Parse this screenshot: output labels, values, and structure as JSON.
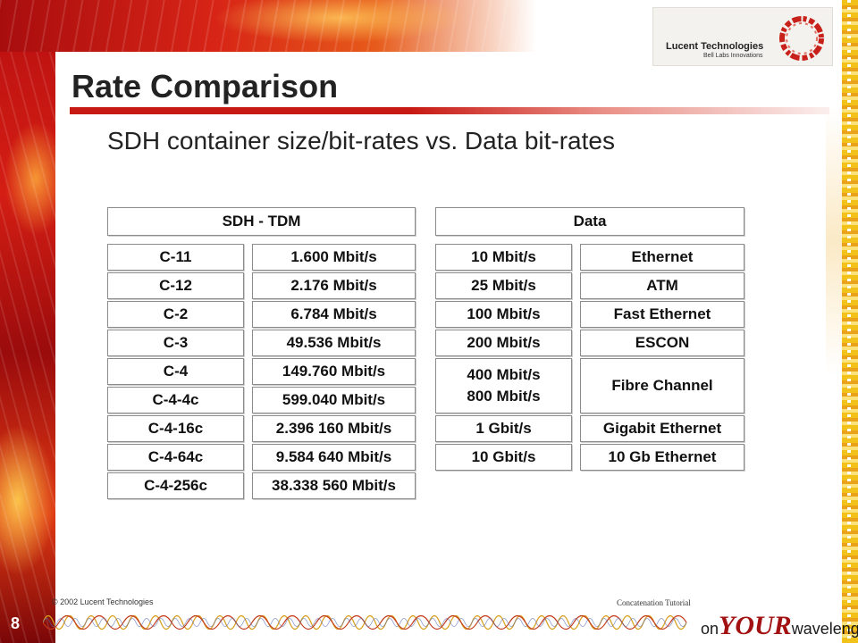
{
  "header": {
    "title": "Rate Comparison",
    "subtitle": "SDH container size/bit-rates vs. Data bit-rates"
  },
  "logo": {
    "name": "Lucent Technologies",
    "tagline": "Bell Labs Innovations"
  },
  "table": {
    "sdh_header": "SDH - TDM",
    "data_header": "Data",
    "sdh_rows": [
      {
        "container": "C-11",
        "rate": "1.600 Mbit/s"
      },
      {
        "container": "C-12",
        "rate": "2.176 Mbit/s"
      },
      {
        "container": "C-2",
        "rate": "6.784 Mbit/s"
      },
      {
        "container": "C-3",
        "rate": "49.536 Mbit/s"
      },
      {
        "container": "C-4",
        "rate": "149.760 Mbit/s"
      },
      {
        "container": "C-4-4c",
        "rate": "599.040 Mbit/s"
      },
      {
        "container": "C-4-16c",
        "rate": "2.396 160 Mbit/s"
      },
      {
        "container": "C-4-64c",
        "rate": "9.584 640 Mbit/s"
      },
      {
        "container": "C-4-256c",
        "rate": "38.338 560 Mbit/s"
      }
    ],
    "data_rows": [
      {
        "rate": "10 Mbit/s",
        "tech": "Ethernet"
      },
      {
        "rate": "25 Mbit/s",
        "tech": "ATM"
      },
      {
        "rate": "100 Mbit/s",
        "tech": "Fast Ethernet"
      },
      {
        "rate": "200 Mbit/s",
        "tech": "ESCON"
      },
      {
        "rate_line1": "400 Mbit/s",
        "rate_line2": "800 Mbit/s",
        "tech": "Fibre Channel"
      },
      {
        "rate": "1 Gbit/s",
        "tech": "Gigabit Ethernet"
      },
      {
        "rate": "10 Gbit/s",
        "tech": "10 Gb Ethernet"
      }
    ]
  },
  "footer": {
    "copyright": "© 2002 Lucent Technologies",
    "doc_name": "Concatenation Tutorial",
    "page_number": "8",
    "brand_on": "on",
    "brand_your": "YOUR",
    "brand_wavelength": "wavelength"
  },
  "colors": {
    "accent_red": "#c81a14",
    "brand_red": "#a31212",
    "strip_yellow": "#f3c21a"
  }
}
